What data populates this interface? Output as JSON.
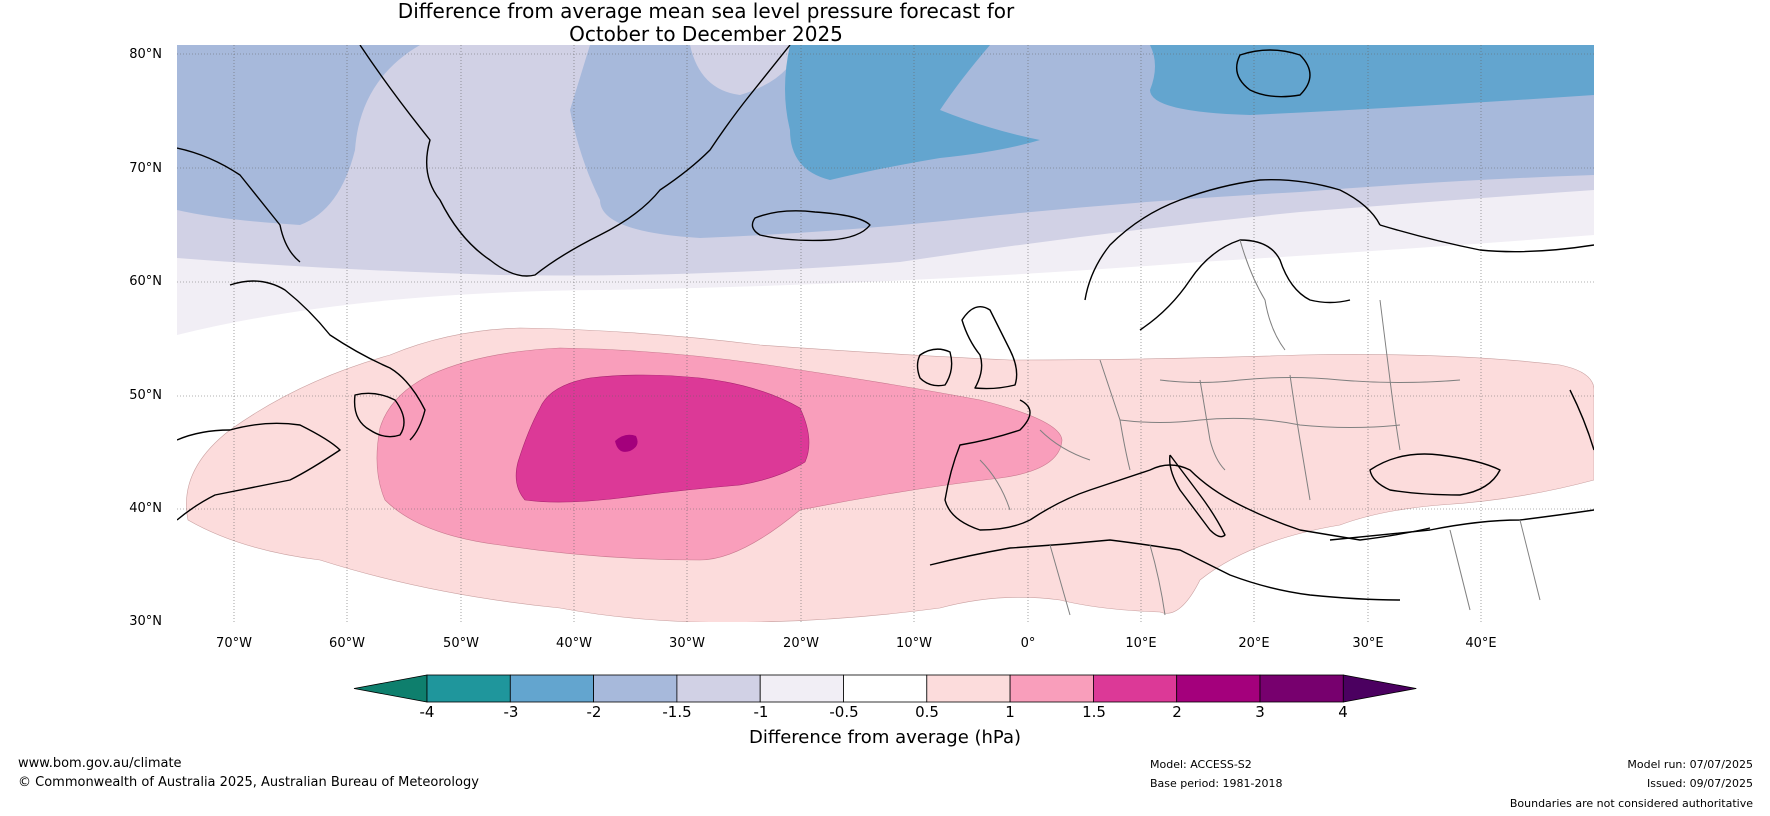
{
  "title": {
    "line1": "Difference from average mean sea level pressure forecast for",
    "line2": "October to December 2025"
  },
  "map": {
    "region": "North Atlantic and Europe",
    "projection": "plate carree",
    "lon_range": [
      -75,
      50
    ],
    "lat_range": [
      30,
      81
    ],
    "lat_ticks": [
      "80°N",
      "70°N",
      "60°N",
      "50°N",
      "40°N",
      "30°N"
    ],
    "lon_ticks": [
      "70°W",
      "60°W",
      "50°W",
      "40°W",
      "30°W",
      "20°W",
      "10°W",
      "0°",
      "10°E",
      "20°E",
      "30°E",
      "40°E"
    ],
    "gridlines": "dotted grey",
    "coastline_color": "#000000",
    "border_color": "#808080"
  },
  "colorbar": {
    "title": "Difference from average (hPa)",
    "ticks": [
      "-4",
      "-3",
      "-2",
      "-1.5",
      "-1",
      "-0.5",
      "0.5",
      "1",
      "1.5",
      "2",
      "3",
      "4"
    ],
    "colors": [
      "#0e7f6d",
      "#1f969c",
      "#63a5cf",
      "#a7b9db",
      "#d1d1e5",
      "#f1eef5",
      "#ffffff",
      "#fcdcdc",
      "#f99ebb",
      "#dc3997",
      "#a4007c",
      "#77006e",
      "#4b0060"
    ],
    "extend": "both"
  },
  "footer": {
    "website": "www.bom.gov.au/climate",
    "copyright": "© Commonwealth of Australia 2025, Australian Bureau of Meteorology",
    "model": "Model: ACCESS-S2",
    "base_period": "Base period: 1981-2018",
    "model_run": "Model run: 07/07/2025",
    "issued": "Issued: 09/07/2025",
    "disclaimer": "Boundaries are not considered authoritative"
  }
}
